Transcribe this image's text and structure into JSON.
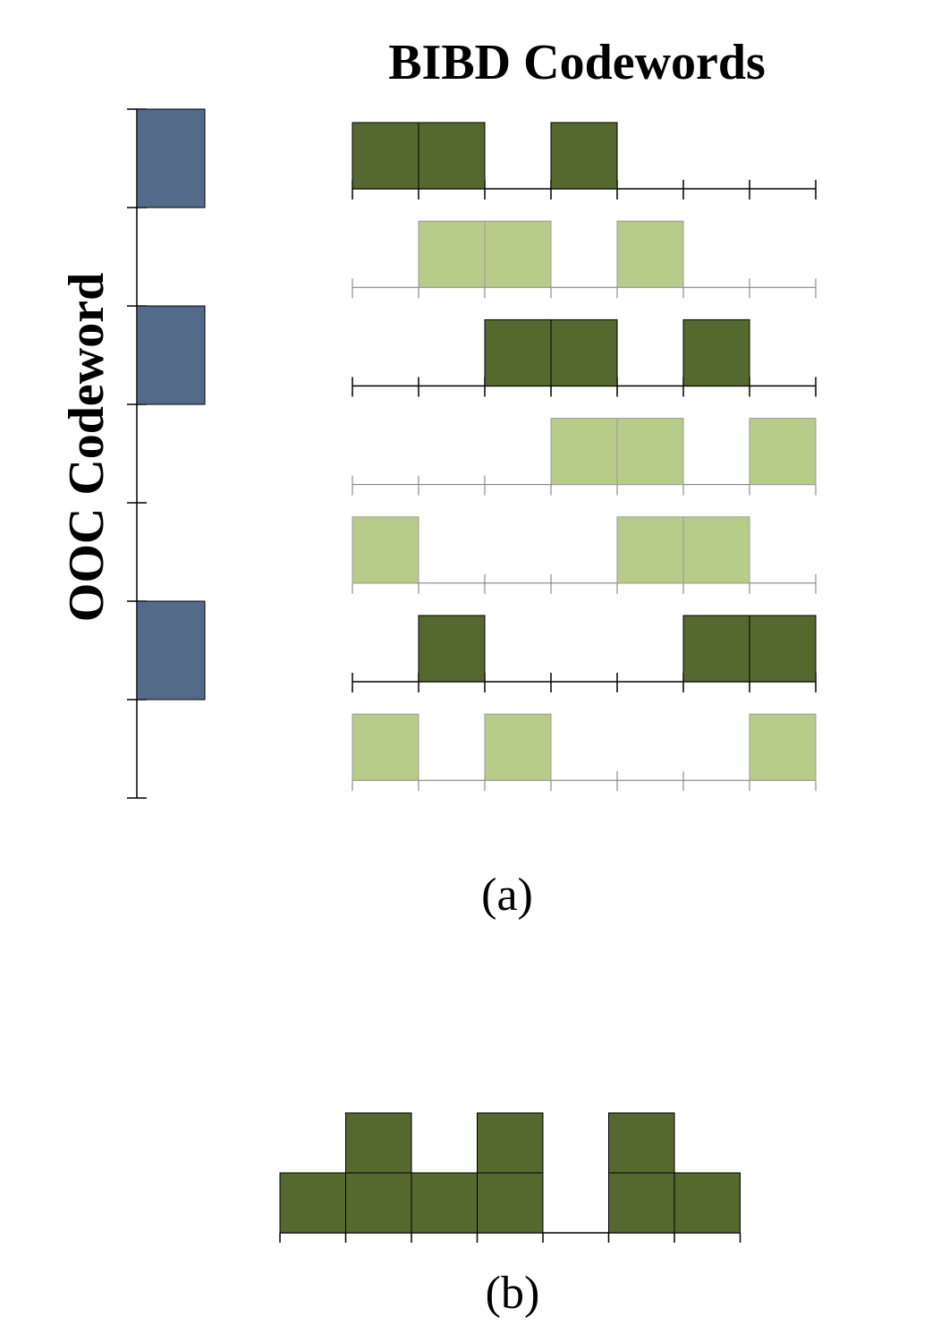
{
  "title": "BIBD Codewords",
  "ooc_label": "OOC Codeword",
  "ooc_codeword": [
    1,
    0,
    1,
    0,
    0,
    1,
    0
  ],
  "ooc_color": "#536a8b",
  "bibd_codewords": [
    [
      1,
      1,
      0,
      1,
      0,
      0,
      0
    ],
    [
      0,
      1,
      1,
      0,
      1,
      0,
      0
    ],
    [
      0,
      0,
      1,
      1,
      0,
      1,
      0
    ],
    [
      0,
      0,
      0,
      1,
      1,
      0,
      1
    ],
    [
      1,
      0,
      0,
      0,
      1,
      1,
      0
    ],
    [
      0,
      1,
      0,
      0,
      0,
      1,
      1
    ],
    [
      1,
      0,
      1,
      0,
      0,
      0,
      1
    ]
  ],
  "selected_color": "#55692f",
  "unselected_color": "#b8cc8a",
  "caption_a": "(a)",
  "sum": [
    1,
    2,
    1,
    2,
    0,
    2,
    1
  ],
  "caption_b": "(b)"
}
